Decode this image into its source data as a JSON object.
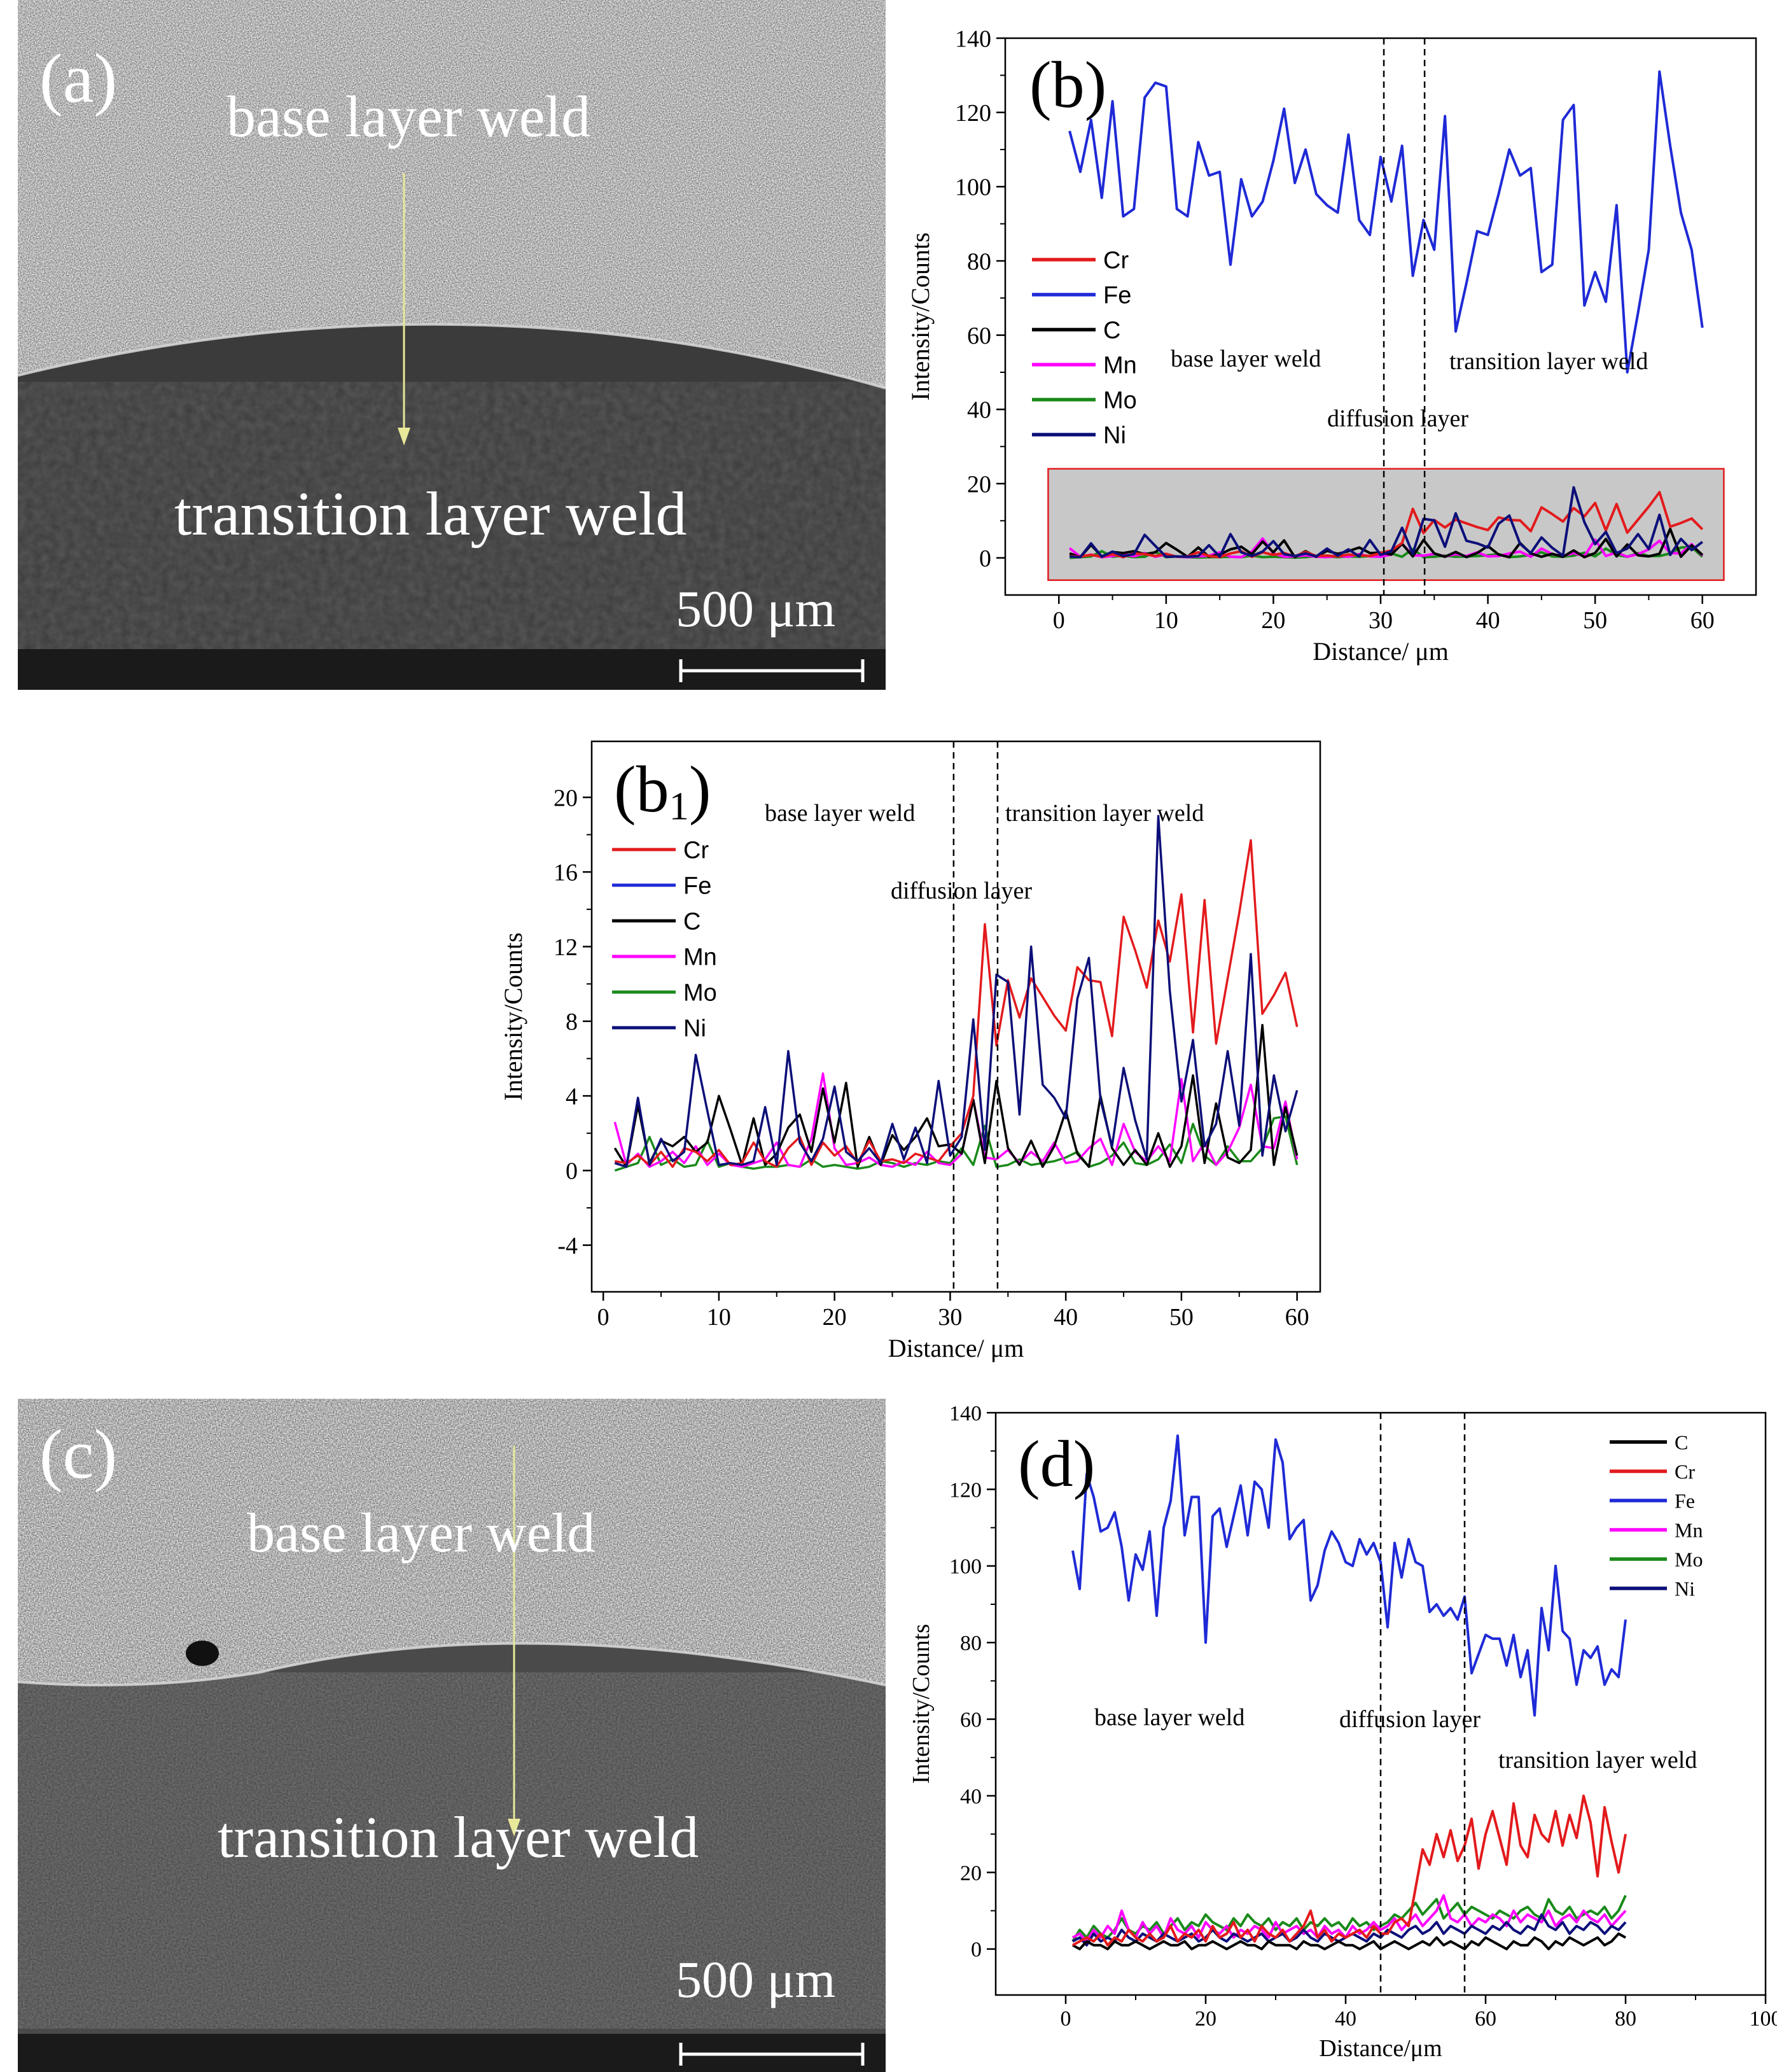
{
  "panels": {
    "a": {
      "label": "(a)",
      "top_text": "base layer weld",
      "bottom_text": "transition layer weld",
      "scale": "500 μm"
    },
    "c": {
      "label": "(c)",
      "top_text": "base layer weld",
      "bottom_text": "transition layer weld",
      "scale": "500 μm"
    }
  },
  "colors": {
    "Cr": "#e31a1c",
    "Fe": "#1f2ad6",
    "C": "#000000",
    "Mn": "#ff00ff",
    "Mo": "#1a8a1a",
    "Ni": "#0c0f78",
    "inset_fill": "#c8c8c8",
    "inset_border": "#e31a1c"
  },
  "chart_data": [
    {
      "id": "b",
      "type": "line",
      "panel_label": "(b)",
      "xlabel": "Distance/ μm",
      "ylabel": "Intensity/Counts",
      "xlim": [
        -5,
        65
      ],
      "ylim": [
        -10,
        140
      ],
      "xticks": [
        0,
        10,
        20,
        30,
        40,
        50,
        60
      ],
      "yticks": [
        0,
        20,
        40,
        60,
        80,
        100,
        120,
        140
      ],
      "legend": [
        "Cr",
        "Fe",
        "C",
        "Mn",
        "Mo",
        "Ni"
      ],
      "legend_position": "left",
      "vlines": [
        30.3,
        34.1
      ],
      "inset_box": {
        "x": [
          -1,
          62
        ],
        "y": [
          -6,
          24
        ]
      },
      "annotations": [
        "base layer weld",
        "transition layer weld",
        "diffusion layer"
      ],
      "x": [
        1,
        2,
        3,
        4,
        5,
        6,
        7,
        8,
        9,
        10,
        11,
        12,
        13,
        14,
        15,
        16,
        17,
        18,
        19,
        20,
        21,
        22,
        23,
        24,
        25,
        26,
        27,
        28,
        29,
        30,
        31,
        32,
        33,
        34,
        35,
        36,
        37,
        38,
        39,
        40,
        41,
        42,
        43,
        44,
        45,
        46,
        47,
        48,
        49,
        50,
        51,
        52,
        53,
        54,
        55,
        56,
        57,
        58,
        59,
        60
      ],
      "series": [
        {
          "name": "Fe",
          "values": [
            115,
            104,
            118,
            97,
            123,
            92,
            94,
            124,
            128,
            127,
            94,
            92,
            112,
            103,
            104,
            79,
            102,
            92,
            96,
            107,
            121,
            101,
            110,
            98,
            95,
            93,
            114,
            91,
            87,
            108,
            96,
            111,
            76,
            91,
            83,
            119,
            61,
            74,
            88,
            87,
            98,
            110,
            103,
            105,
            77,
            79,
            118,
            122,
            68,
            77,
            69,
            95,
            50,
            66,
            83,
            131,
            111,
            93,
            83,
            62
          ]
        },
        {
          "name": "Cr",
          "values": [
            0.5,
            0.4,
            0.8,
            0.3,
            1.0,
            0.2,
            1.2,
            1.0,
            0.5,
            1.1,
            0.3,
            0.4,
            1.5,
            0.5,
            0.2,
            1.2,
            1.8,
            0.3,
            1.5,
            0.8,
            1.3,
            0.4,
            1.6,
            0.5,
            0.6,
            0.4,
            0.9,
            0.7,
            0.5,
            1.3,
            2.0,
            4.0,
            13.2,
            6.7,
            10.2,
            8.2,
            10.3,
            9.3,
            8.3,
            7.5,
            10.9,
            10.2,
            10.1,
            7.2,
            13.6,
            11.8,
            9.8,
            13.4,
            11.2,
            14.8,
            7.4,
            14.5,
            6.8,
            10.3,
            13.8,
            17.7,
            8.4,
            9.4,
            10.6,
            7.7
          ]
        },
        {
          "name": "C",
          "values": [
            1.2,
            0.2,
            3.5,
            0.4,
            1.6,
            1.3,
            1.8,
            1.0,
            1.5,
            4.0,
            2.2,
            0.3,
            2.8,
            0.3,
            0.9,
            2.3,
            3.0,
            1.0,
            4.4,
            1.5,
            4.7,
            0.2,
            1.8,
            0.3,
            1.9,
            1.1,
            1.8,
            2.8,
            1.3,
            1.4,
            0.9,
            3.8,
            0.4,
            4.8,
            1.2,
            0.3,
            1.6,
            0.2,
            1.3,
            3.2,
            0.9,
            0.2,
            4.0,
            1.2,
            0.3,
            1.1,
            0.3,
            2.0,
            0.2,
            1.3,
            5.1,
            0.4,
            3.6,
            0.7,
            0.4,
            1.1,
            7.8,
            0.3,
            3.4,
            0.8
          ]
        },
        {
          "name": "Mn",
          "values": [
            2.6,
            0.3,
            0.9,
            0.2,
            0.5,
            1.0,
            0.4,
            1.3,
            0.3,
            0.9,
            0.3,
            0.2,
            0.4,
            0.6,
            1.5,
            0.3,
            0.2,
            1.7,
            5.2,
            1.2,
            0.3,
            0.4,
            0.7,
            0.3,
            0.2,
            0.5,
            0.3,
            1.0,
            0.4,
            0.3,
            0.9,
            3.8,
            0.7,
            0.6,
            1.1,
            0.4,
            1.0,
            0.5,
            1.5,
            0.4,
            0.5,
            1.2,
            1.7,
            0.3,
            2.5,
            1.0,
            0.5,
            1.3,
            0.5,
            4.9,
            0.5,
            1.5,
            0.3,
            1.0,
            2.3,
            4.6,
            1.3,
            1.2,
            3.7,
            0.6
          ]
        },
        {
          "name": "Mo",
          "values": [
            0.0,
            0.2,
            0.4,
            1.8,
            0.3,
            0.6,
            0.2,
            0.3,
            1.6,
            0.2,
            0.4,
            0.2,
            0.1,
            0.2,
            0.2,
            0.3,
            0.2,
            0.6,
            0.2,
            0.3,
            0.2,
            0.1,
            0.2,
            0.5,
            0.4,
            0.2,
            0.4,
            0.3,
            0.5,
            0.4,
            1.2,
            0.3,
            2.4,
            0.2,
            0.3,
            0.6,
            0.3,
            0.4,
            0.5,
            0.7,
            1.0,
            0.2,
            0.4,
            0.8,
            1.5,
            0.4,
            0.3,
            0.6,
            1.4,
            0.4,
            2.5,
            0.8,
            0.3,
            1.3,
            0.5,
            0.5,
            1.2,
            2.8,
            2.9,
            0.3
          ]
        },
        {
          "name": "Ni",
          "values": [
            0.4,
            0.2,
            3.9,
            0.3,
            1.7,
            0.5,
            1.0,
            6.2,
            3.2,
            0.3,
            0.4,
            0.3,
            0.5,
            3.4,
            0.3,
            6.4,
            1.5,
            0.5,
            1.7,
            4.5,
            1.0,
            0.5,
            1.2,
            0.4,
            2.5,
            0.6,
            2.3,
            0.4,
            4.8,
            0.8,
            1.8,
            8.1,
            1.1,
            10.5,
            10.1,
            3.0,
            12.0,
            4.6,
            3.9,
            2.8,
            9.2,
            11.4,
            3.8,
            1.3,
            5.5,
            2.7,
            0.6,
            19.0,
            9.6,
            3.7,
            7.0,
            1.3,
            2.5,
            6.4,
            2.4,
            11.6,
            0.8,
            5.1,
            2.1,
            4.3
          ]
        }
      ]
    },
    {
      "id": "b1",
      "type": "line",
      "panel_label": "(b",
      "panel_label_sub": "1",
      "panel_label_close": ")",
      "xlabel": "Distance/ μm",
      "ylabel": "Intensity/Counts",
      "xlim": [
        -1,
        62
      ],
      "ylim": [
        -6.5,
        23
      ],
      "xticks": [
        0,
        10,
        20,
        30,
        40,
        50,
        60
      ],
      "yticks": [
        -4,
        0,
        4,
        8,
        12,
        16,
        20
      ],
      "legend": [
        "Cr",
        "Fe",
        "C",
        "Mn",
        "Mo",
        "Ni"
      ],
      "legend_position": "top-left",
      "vlines": [
        30.3,
        34.1
      ],
      "annotations": [
        "base layer weld",
        "transition layer weld",
        "diffusion layer"
      ],
      "series_ref": "b"
    },
    {
      "id": "d",
      "type": "line",
      "panel_label": "(d)",
      "xlabel": "Distance/μm",
      "ylabel": "Intensity/Counts",
      "xlim": [
        -10,
        100
      ],
      "ylim": [
        -12,
        140
      ],
      "xticks": [
        0,
        20,
        40,
        60,
        80,
        100
      ],
      "yticks": [
        0,
        20,
        40,
        60,
        80,
        100,
        120,
        140
      ],
      "legend": [
        "C",
        "Cr",
        "Fe",
        "Mn",
        "Mo",
        "Ni"
      ],
      "legend_position": "top-right",
      "vlines": [
        45,
        57
      ],
      "annotations": [
        "base layer weld",
        "diffusion layer",
        "transition layer weld"
      ],
      "x": [
        1,
        2,
        3,
        4,
        5,
        6,
        7,
        8,
        9,
        10,
        11,
        12,
        13,
        14,
        15,
        16,
        17,
        18,
        19,
        20,
        21,
        22,
        23,
        24,
        25,
        26,
        27,
        28,
        29,
        30,
        31,
        32,
        33,
        34,
        35,
        36,
        37,
        38,
        39,
        40,
        41,
        42,
        43,
        44,
        45,
        46,
        47,
        48,
        49,
        50,
        51,
        52,
        53,
        54,
        55,
        56,
        57,
        58,
        59,
        60,
        61,
        62,
        63,
        64,
        65,
        66,
        67,
        68,
        69,
        70,
        71,
        72,
        73,
        74,
        75,
        76,
        77,
        78,
        79,
        80
      ],
      "series": [
        {
          "name": "Fe",
          "values": [
            104,
            94,
            124,
            118,
            109,
            110,
            114,
            105,
            91,
            103,
            99,
            109,
            87,
            110,
            117,
            134,
            108,
            118,
            118,
            80,
            113,
            115,
            105,
            113,
            121,
            108,
            122,
            120,
            110,
            133,
            127,
            107,
            110,
            112,
            91,
            95,
            104,
            109,
            106,
            101,
            100,
            107,
            103,
            106,
            101,
            84,
            106,
            97,
            107,
            101,
            100,
            88,
            90,
            87,
            89,
            86,
            92,
            72,
            77,
            82,
            81,
            81,
            74,
            82,
            71,
            78,
            61,
            89,
            78,
            100,
            83,
            81,
            69,
            78,
            76,
            79,
            69,
            73,
            71,
            86
          ]
        },
        {
          "name": "Cr",
          "values": [
            1,
            2,
            3,
            2,
            4,
            1,
            3,
            2,
            5,
            3,
            2,
            4,
            2,
            3,
            6,
            2,
            4,
            3,
            5,
            2,
            6,
            3,
            4,
            7,
            3,
            5,
            2,
            6,
            4,
            3,
            5,
            2,
            4,
            6,
            10,
            3,
            5,
            2,
            4,
            3,
            4,
            5,
            3,
            6,
            4,
            4,
            7,
            8,
            6,
            16,
            26,
            22,
            30,
            24,
            31,
            23,
            27,
            34,
            21,
            30,
            36,
            29,
            22,
            38,
            27,
            24,
            35,
            30,
            28,
            36,
            27,
            35,
            29,
            40,
            33,
            19,
            37,
            28,
            20,
            30
          ]
        },
        {
          "name": "C",
          "values": [
            1,
            0,
            2,
            1,
            1,
            0,
            2,
            1,
            1,
            2,
            1,
            0,
            1,
            2,
            1,
            1,
            2,
            0,
            1,
            1,
            2,
            1,
            0,
            1,
            2,
            1,
            1,
            0,
            2,
            1,
            1,
            1,
            0,
            2,
            1,
            1,
            0,
            1,
            2,
            1,
            1,
            0,
            1,
            2,
            0,
            1,
            2,
            1,
            0,
            1,
            2,
            1,
            3,
            1,
            2,
            1,
            0,
            2,
            1,
            3,
            2,
            1,
            0,
            2,
            1,
            1,
            3,
            2,
            0,
            2,
            1,
            3,
            2,
            1,
            2,
            3,
            1,
            2,
            4,
            3
          ]
        },
        {
          "name": "Mn",
          "values": [
            3,
            4,
            2,
            5,
            3,
            6,
            4,
            10,
            5,
            3,
            7,
            4,
            6,
            3,
            8,
            5,
            4,
            6,
            3,
            7,
            5,
            4,
            6,
            3,
            5,
            4,
            6,
            5,
            3,
            7,
            4,
            5,
            6,
            4,
            5,
            3,
            6,
            4,
            5,
            3,
            6,
            4,
            5,
            7,
            5,
            6,
            8,
            5,
            7,
            9,
            6,
            8,
            10,
            14,
            8,
            7,
            9,
            6,
            8,
            7,
            9,
            8,
            6,
            10,
            7,
            9,
            8,
            7,
            10,
            6,
            8,
            9,
            7,
            10,
            8,
            7,
            9,
            6,
            8,
            10
          ]
        },
        {
          "name": "Mo",
          "values": [
            2,
            5,
            3,
            6,
            4,
            3,
            5,
            8,
            5,
            4,
            6,
            5,
            7,
            4,
            6,
            8,
            5,
            7,
            6,
            9,
            7,
            6,
            5,
            8,
            6,
            9,
            7,
            6,
            8,
            5,
            7,
            6,
            8,
            5,
            7,
            6,
            8,
            6,
            7,
            5,
            8,
            6,
            7,
            5,
            6,
            7,
            9,
            8,
            10,
            12,
            9,
            11,
            13,
            8,
            10,
            12,
            9,
            11,
            10,
            9,
            8,
            10,
            9,
            8,
            10,
            11,
            9,
            8,
            13,
            10,
            9,
            11,
            8,
            9,
            10,
            9,
            11,
            8,
            10,
            14
          ]
        },
        {
          "name": "Ni",
          "values": [
            2,
            3,
            1,
            4,
            2,
            3,
            2,
            5,
            3,
            2,
            4,
            3,
            2,
            4,
            3,
            2,
            3,
            4,
            2,
            3,
            5,
            3,
            2,
            4,
            3,
            2,
            3,
            4,
            2,
            3,
            4,
            2,
            3,
            5,
            3,
            2,
            4,
            3,
            2,
            3,
            4,
            3,
            2,
            4,
            3,
            5,
            4,
            3,
            5,
            6,
            4,
            5,
            7,
            4,
            6,
            5,
            4,
            6,
            5,
            4,
            6,
            5,
            7,
            5,
            4,
            6,
            5,
            9,
            6,
            5,
            7,
            4,
            6,
            5,
            7,
            6,
            4,
            6,
            5,
            7
          ]
        }
      ]
    }
  ]
}
